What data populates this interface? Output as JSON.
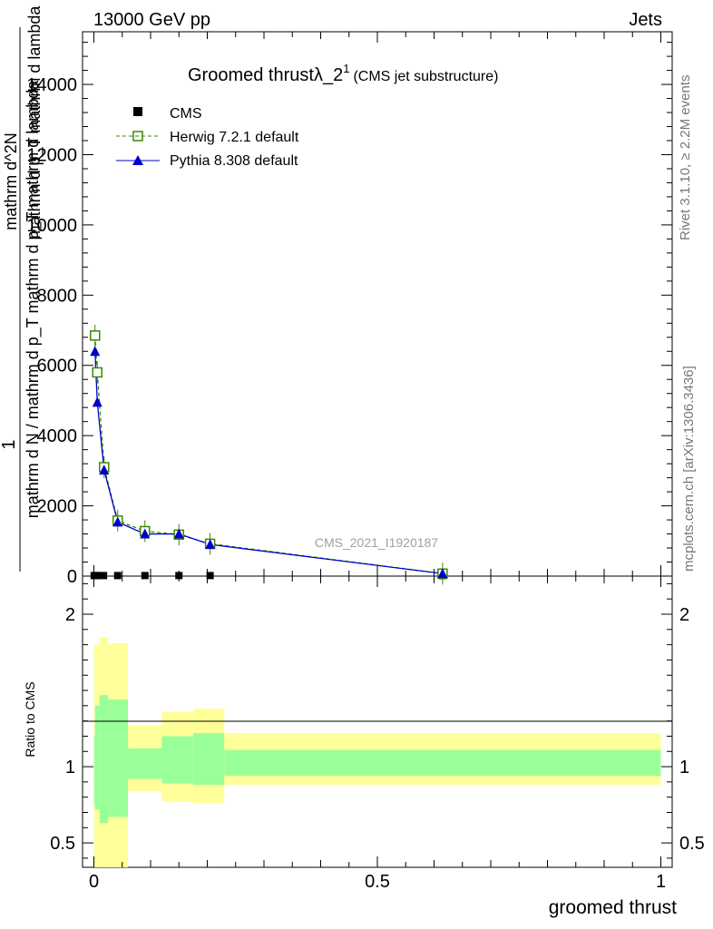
{
  "header": {
    "energy_label": "13000 GeV pp",
    "process_label": "Jets",
    "title_main": "Groomed thrustλ_2",
    "title_sup": "1",
    "title_sub": "(CMS jet substructure)"
  },
  "side_labels": {
    "rivet": "Rivet 3.1.10, ≥ 2.2M events",
    "mcplots": "mcplots.cern.ch [arXiv:1306.3436]"
  },
  "watermark": "CMS_2021_I1920187",
  "y_axis_label": {
    "numerator": "1",
    "denominator": "mathrm d N / mathrm d p_T mathrm d p_T mathrm d lambda",
    "upper": "mathrm d^2N",
    "lower": "mathrm d p_T mathrm d lambda"
  },
  "ratio_ylabel": "Ratio to CMS",
  "xlabel": "groomed thrust",
  "legend": [
    {
      "label": "CMS",
      "color": "#000000",
      "marker": "filled-square"
    },
    {
      "label": "Herwig 7.2.1 default",
      "color": "#3a8a00",
      "marker": "open-square"
    },
    {
      "label": "Pythia 8.308 default",
      "color": "#0000cc",
      "marker": "filled-triangle"
    }
  ],
  "chart_data": {
    "type": "line",
    "xlim": [
      -0.02,
      1.02
    ],
    "ylim": [
      0,
      15500
    ],
    "ratio_ylim": [
      0.34,
      2.25
    ],
    "y_ticks": [
      0,
      2000,
      4000,
      6000,
      8000,
      10000,
      12000,
      14000
    ],
    "y_tick_labels": [
      "0",
      "2000",
      "4000",
      "6000",
      "8000",
      "10000",
      "12000",
      "14000"
    ],
    "x_ticks": [
      0,
      0.5,
      1
    ],
    "x_tick_labels": [
      "0",
      "0.5",
      "1"
    ],
    "ratio_ticks": [
      0.5,
      1,
      2
    ],
    "ratio_tick_labels": [
      "0.5",
      "1",
      "2"
    ],
    "cms_x": [
      0.0005,
      0.003,
      0.008,
      0.017,
      0.042,
      0.09,
      0.15,
      0.205,
      0.615
    ],
    "cms_y": [
      15,
      15,
      15,
      15,
      15,
      15,
      15,
      15,
      15
    ],
    "series": [
      {
        "name": "Herwig 7.2.1 default",
        "x": [
          0.002,
          0.006,
          0.018,
          0.042,
          0.09,
          0.15,
          0.205,
          0.615
        ],
        "y": [
          6850,
          5800,
          3100,
          1580,
          1280,
          1180,
          920,
          70
        ]
      },
      {
        "name": "Pythia 8.308 default",
        "x": [
          0.002,
          0.006,
          0.018,
          0.042,
          0.09,
          0.15,
          0.205,
          0.615
        ],
        "y": [
          6400,
          4950,
          3020,
          1540,
          1200,
          1200,
          900,
          70
        ]
      }
    ],
    "ratio_bands": [
      {
        "x0": 0.0,
        "x1": 0.002,
        "yellow": [
          0.34,
          1.8
        ],
        "green": [
          0.75,
          1.2
        ]
      },
      {
        "x0": 0.002,
        "x1": 0.01,
        "yellow": [
          0.34,
          1.8
        ],
        "green": [
          0.72,
          1.4
        ]
      },
      {
        "x0": 0.01,
        "x1": 0.025,
        "yellow": [
          0.34,
          1.85
        ],
        "green": [
          0.63,
          1.47
        ]
      },
      {
        "x0": 0.025,
        "x1": 0.06,
        "yellow": [
          0.34,
          1.81
        ],
        "green": [
          0.67,
          1.44
        ]
      },
      {
        "x0": 0.06,
        "x1": 0.12,
        "yellow": [
          0.84,
          1.27
        ],
        "green": [
          0.92,
          1.12
        ]
      },
      {
        "x0": 0.12,
        "x1": 0.175,
        "yellow": [
          0.77,
          1.36
        ],
        "green": [
          0.89,
          1.2
        ]
      },
      {
        "x0": 0.175,
        "x1": 0.23,
        "yellow": [
          0.76,
          1.38
        ],
        "green": [
          0.88,
          1.22
        ]
      },
      {
        "x0": 0.23,
        "x1": 1.0,
        "yellow": [
          0.88,
          1.22
        ],
        "green": [
          0.94,
          1.11
        ]
      }
    ]
  }
}
